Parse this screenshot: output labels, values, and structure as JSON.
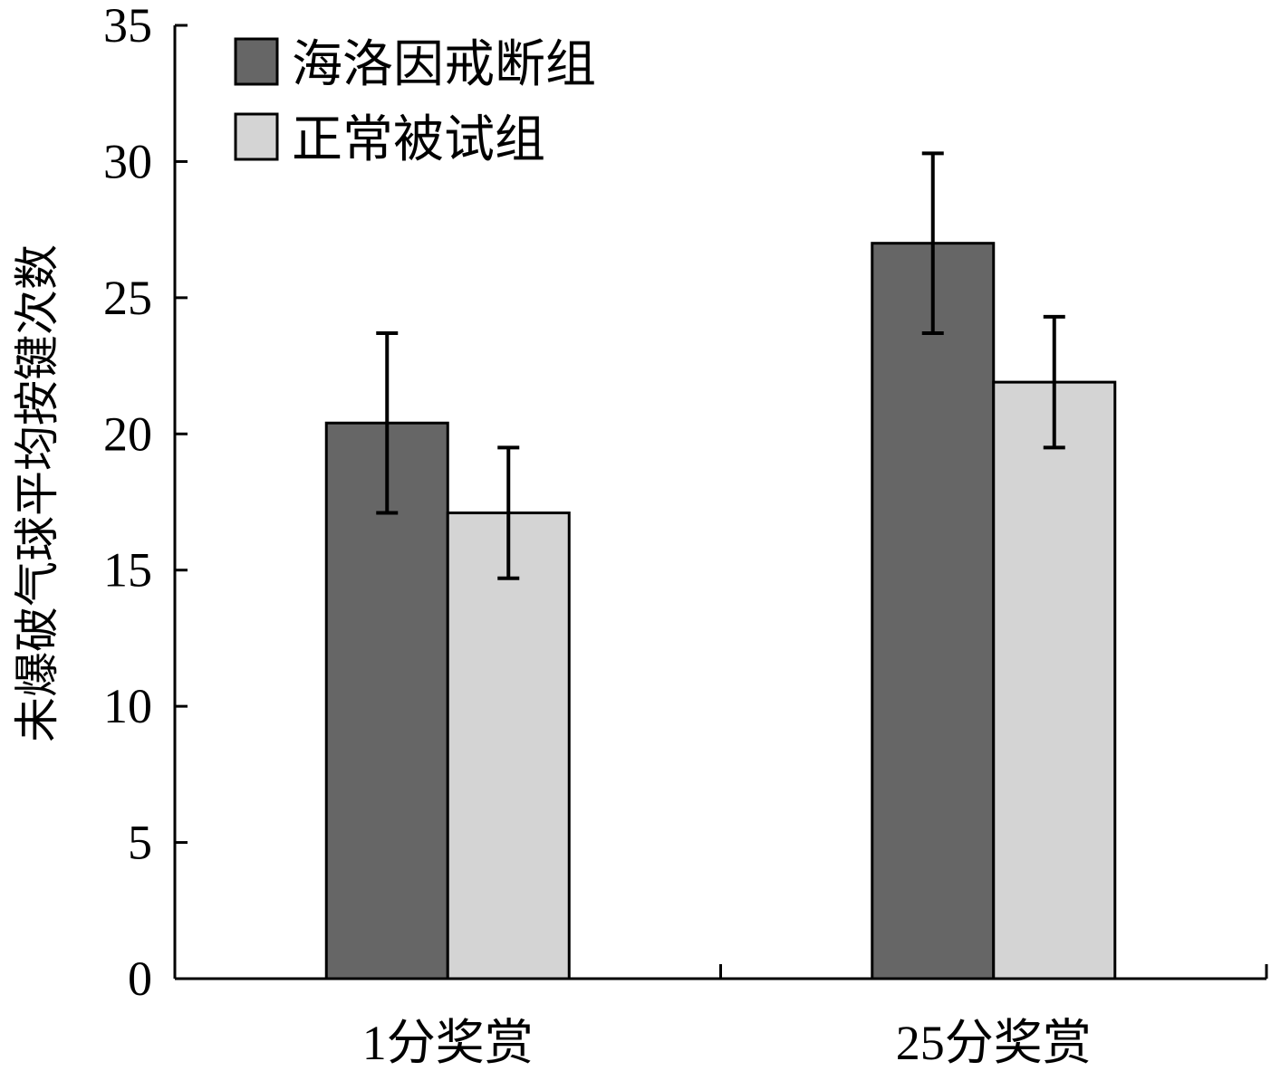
{
  "chart_data": {
    "type": "bar",
    "title": "",
    "xlabel": "",
    "ylabel": "未爆破气球平均按键次数",
    "ylim": [
      0,
      35
    ],
    "yticks": [
      0,
      5,
      10,
      15,
      20,
      25,
      30,
      35
    ],
    "categories": [
      "1分奖赏",
      "25分奖赏"
    ],
    "series": [
      {
        "name": "海洛因戒断组",
        "color": "#666666",
        "values": [
          20.4,
          27.0
        ],
        "errors": [
          3.3,
          3.3
        ]
      },
      {
        "name": "正常被试组",
        "color": "#d4d4d4",
        "values": [
          17.1,
          21.9
        ],
        "errors": [
          2.4,
          2.4
        ]
      }
    ],
    "grid": false,
    "legend": "top-left"
  }
}
